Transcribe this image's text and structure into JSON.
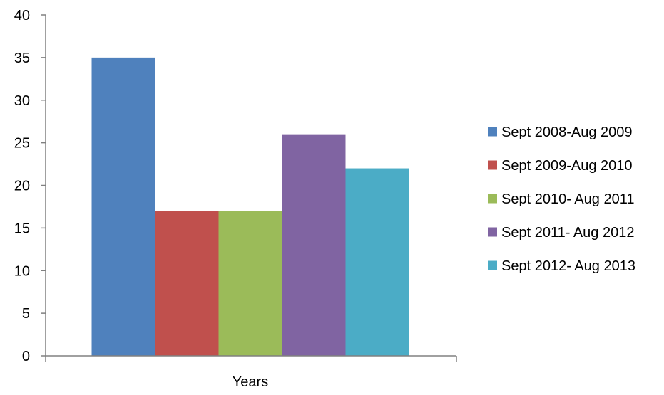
{
  "chart_data": {
    "type": "bar",
    "title": "",
    "xlabel": "",
    "ylabel": "",
    "categories": [
      "Years"
    ],
    "series": [
      {
        "name": "Sept 2008-Aug 2009",
        "values": [
          35
        ],
        "color": "#4f81bd"
      },
      {
        "name": "Sept 2009-Aug 2010",
        "values": [
          17
        ],
        "color": "#c0504d"
      },
      {
        "name": "Sept 2010- Aug 2011",
        "values": [
          17
        ],
        "color": "#9bbb59"
      },
      {
        "name": "Sept 2011- Aug 2012",
        "values": [
          26
        ],
        "color": "#8064a2"
      },
      {
        "name": "Sept 2012- Aug 2013",
        "values": [
          22
        ],
        "color": "#4bacc6"
      }
    ],
    "ylim": [
      0,
      40
    ],
    "yticks": [
      0,
      5,
      10,
      15,
      20,
      25,
      30,
      35,
      40
    ],
    "grid": false,
    "legend_position": "right"
  }
}
